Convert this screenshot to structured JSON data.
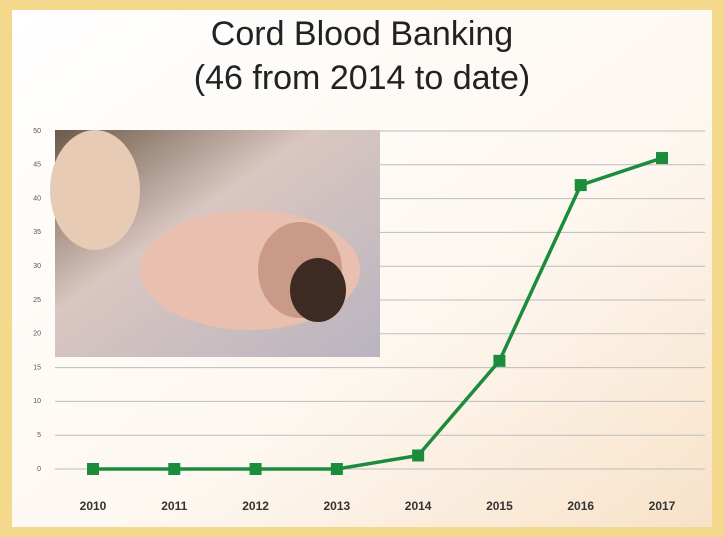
{
  "chart_data": {
    "type": "line",
    "title": "Cord Blood Banking",
    "subtitle": "(46 from 2014 to date)",
    "categories": [
      "2010",
      "2011",
      "2012",
      "2013",
      "2014",
      "2015",
      "2016",
      "2017"
    ],
    "values": [
      0,
      0,
      0,
      0,
      2,
      16,
      42,
      46
    ],
    "color": "#1a8c3c",
    "ylim": [
      0,
      50
    ],
    "yticks": [
      0,
      5,
      10,
      15,
      20,
      25,
      30,
      35,
      40,
      45,
      50
    ],
    "grid": true
  }
}
